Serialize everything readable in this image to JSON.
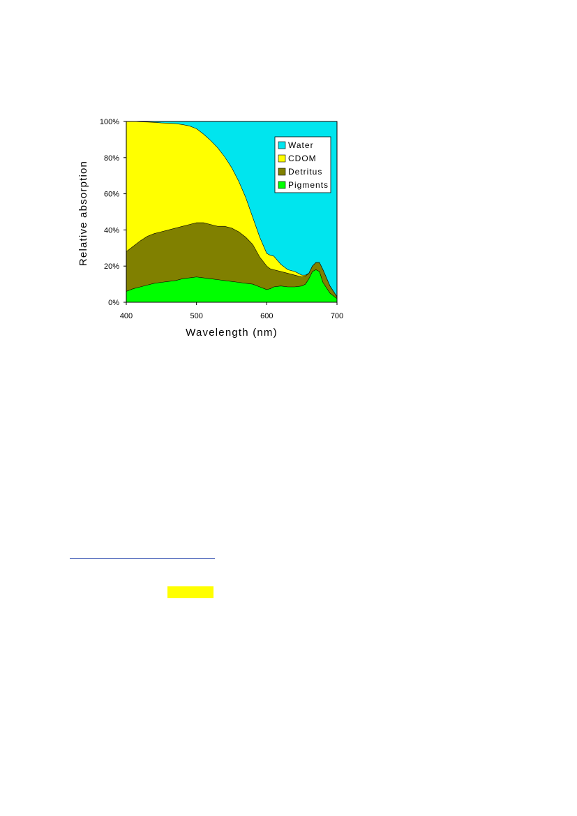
{
  "chart_data": {
    "type": "area",
    "stacked": true,
    "title": "",
    "xlabel": "Wavelength (nm)",
    "ylabel": "Relative absorption",
    "xlim": [
      400,
      700
    ],
    "ylim": [
      0,
      100
    ],
    "x_ticks": [
      "400",
      "500",
      "600",
      "700"
    ],
    "y_ticks": [
      "0%",
      "20%",
      "40%",
      "60%",
      "80%",
      "100%"
    ],
    "legend_position": "top-right",
    "x": [
      400,
      410,
      420,
      430,
      440,
      450,
      460,
      470,
      480,
      490,
      500,
      510,
      520,
      530,
      540,
      550,
      560,
      570,
      580,
      590,
      600,
      605,
      610,
      620,
      630,
      640,
      650,
      655,
      660,
      665,
      670,
      675,
      680,
      690,
      700
    ],
    "series": [
      {
        "name": "Pigments",
        "color": "#00ff00",
        "values": [
          6,
          7.5,
          8.5,
          9.5,
          10.5,
          11,
          11.5,
          12,
          13,
          13.5,
          14,
          13.5,
          13,
          12.5,
          12,
          11.5,
          11,
          10.5,
          10,
          8.5,
          7,
          7.5,
          8.5,
          9,
          8.5,
          8.5,
          9,
          10,
          13,
          17,
          18,
          17,
          11,
          5,
          2
        ]
      },
      {
        "name": "Detritus",
        "color": "#808000",
        "values": [
          28,
          31,
          34,
          36.5,
          38,
          39,
          40,
          41,
          42,
          43,
          44,
          44,
          43,
          42,
          42,
          41,
          39,
          36,
          32,
          25,
          20,
          18.5,
          18,
          17,
          16,
          15,
          14,
          14.5,
          16,
          20,
          22,
          22,
          18,
          9,
          3
        ]
      },
      {
        "name": "CDOM",
        "color": "#ffff00",
        "values": [
          100,
          100,
          99.8,
          99.7,
          99.5,
          99.2,
          99,
          98.8,
          98.3,
          97.5,
          96,
          93,
          89.5,
          85.5,
          80.5,
          74.5,
          67,
          58,
          47,
          36,
          27,
          26,
          25.5,
          21,
          18,
          17,
          15,
          15,
          16,
          20,
          22,
          22,
          18,
          9,
          3
        ]
      },
      {
        "name": "Water",
        "color": "#00e5ee",
        "values": [
          100,
          100,
          100,
          100,
          100,
          100,
          100,
          100,
          100,
          100,
          100,
          100,
          100,
          100,
          100,
          100,
          100,
          100,
          100,
          100,
          100,
          100,
          100,
          100,
          100,
          100,
          100,
          100,
          100,
          100,
          100,
          100,
          100,
          100,
          100
        ]
      }
    ]
  }
}
